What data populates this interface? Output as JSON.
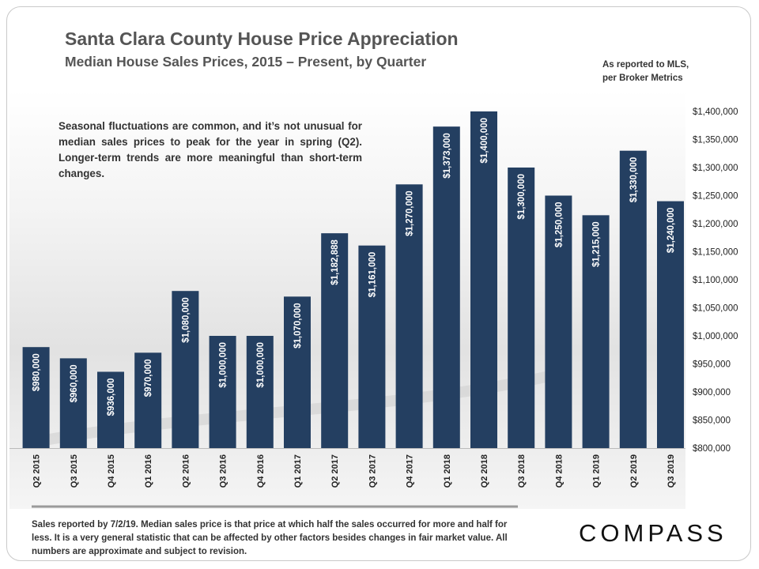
{
  "header": {
    "title": "Santa Clara County House Price Appreciation",
    "subtitle": "Median House Sales Prices, 2015 – Present, by Quarter",
    "source_line1": "As reported to MLS,",
    "source_line2": "per Broker Metrics"
  },
  "note": "Seasonal fluctuations are common, and it’s not unusual for median sales prices to peak for the year in spring (Q2). Longer-term trends are more meaningful than short-term changes.",
  "footer": "Sales reported by 7/2/19. Median sales price is that price at which half the sales occurred for more and half for less. It is a very general statistic that can be affected by other factors besides changes in fair market value. All numbers are approximate and subject to revision.",
  "brand": "COMPASS",
  "colors": {
    "bar": "#243f61",
    "bar_label": "#ffffff",
    "text": "#555555"
  },
  "chart_data": {
    "type": "bar",
    "title": "Santa Clara County House Price Appreciation",
    "subtitle": "Median House Sales Prices, 2015 – Present, by Quarter",
    "xlabel": "",
    "ylabel": "",
    "ylim": [
      800000,
      1400000
    ],
    "yticks": [
      800000,
      850000,
      900000,
      950000,
      1000000,
      1050000,
      1100000,
      1150000,
      1200000,
      1250000,
      1300000,
      1350000,
      1400000
    ],
    "ytick_labels": [
      "$800,000",
      "$850,000",
      "$900,000",
      "$950,000",
      "$1,000,000",
      "$1,050,000",
      "$1,100,000",
      "$1,150,000",
      "$1,200,000",
      "$1,250,000",
      "$1,300,000",
      "$1,350,000",
      "$1,400,000"
    ],
    "axis_position": "right",
    "grid": false,
    "categories": [
      "Q2 2015",
      "Q3 2015",
      "Q4 2015",
      "Q1 2016",
      "Q2 2016",
      "Q3 2016",
      "Q4 2016",
      "Q1 2017",
      "Q2 2017",
      "Q3 2017",
      "Q4 2017",
      "Q1 2018",
      "Q2 2018",
      "Q3 2018",
      "Q4 2018",
      "Q1 2019",
      "Q2 2019",
      "Q3 2019"
    ],
    "values": [
      980000,
      960000,
      936000,
      970000,
      1080000,
      1000000,
      1000000,
      1070000,
      1182888,
      1161000,
      1270000,
      1373000,
      1400000,
      1300000,
      1250000,
      1215000,
      1330000,
      1240000
    ],
    "data_labels": [
      "$980,000",
      "$960,000",
      "$936,000",
      "$970,000",
      "$1,080,000",
      "$1,000,000",
      "$1,000,000",
      "$1,070,000",
      "$1,182,888",
      "$1,161,000",
      "$1,270,000",
      "$1,373,000",
      "$1,400,000",
      "$1,300,000",
      "$1,250,000",
      "$1,215,000",
      "$1,330,000",
      "$1,240,000"
    ]
  }
}
